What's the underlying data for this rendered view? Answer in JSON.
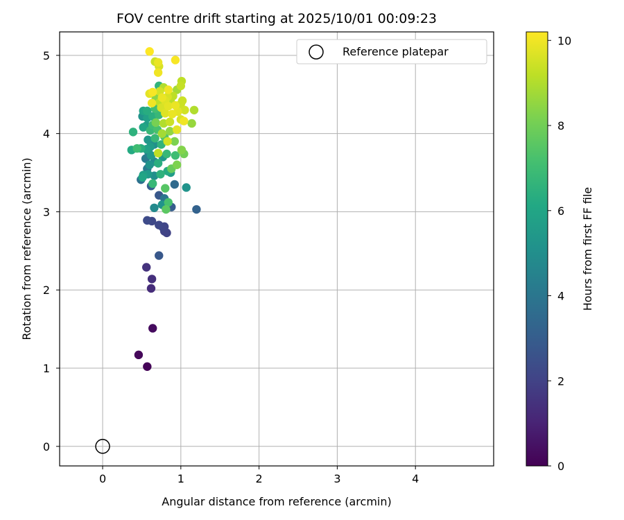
{
  "chart_data": {
    "type": "scatter",
    "title": "FOV centre drift starting at 2025/10/01 00:09:23",
    "xlabel": "Angular distance from reference (arcmin)",
    "ylabel": "Rotation from reference (arcmin)",
    "xlim": [
      -0.55,
      5.0
    ],
    "ylim": [
      -0.25,
      5.3
    ],
    "xticks": [
      0,
      1,
      2,
      3,
      4
    ],
    "yticks": [
      0,
      1,
      2,
      3,
      4,
      5
    ],
    "xtick_labels": [
      "0",
      "1",
      "2",
      "3",
      "4"
    ],
    "ytick_labels": [
      "0",
      "1",
      "2",
      "3",
      "4",
      "5"
    ],
    "grid": true,
    "legend": {
      "placement": "top-right",
      "label": "Reference platepar"
    },
    "reference_point": {
      "x": 0,
      "y": 0
    },
    "colorbar": {
      "label": "Hours from first FF file",
      "range": [
        0,
        10.2
      ],
      "ticks": [
        0,
        2,
        4,
        6,
        8,
        10
      ],
      "tick_labels": [
        "0",
        "2",
        "4",
        "6",
        "8",
        "10"
      ],
      "colormap": "viridis"
    },
    "points": [
      {
        "x": 0.57,
        "y": 1.02,
        "h": 0.1
      },
      {
        "x": 0.46,
        "y": 1.17,
        "h": 0.2
      },
      {
        "x": 0.64,
        "y": 1.51,
        "h": 0.3
      },
      {
        "x": 0.62,
        "y": 2.02,
        "h": 1.3
      },
      {
        "x": 0.63,
        "y": 2.14,
        "h": 1.4
      },
      {
        "x": 0.56,
        "y": 2.29,
        "h": 1.5
      },
      {
        "x": 0.72,
        "y": 2.44,
        "h": 2.8
      },
      {
        "x": 0.82,
        "y": 2.73,
        "h": 2.0
      },
      {
        "x": 0.79,
        "y": 2.75,
        "h": 2.0
      },
      {
        "x": 0.77,
        "y": 2.8,
        "h": 2.1
      },
      {
        "x": 0.72,
        "y": 2.83,
        "h": 2.2
      },
      {
        "x": 0.79,
        "y": 2.81,
        "h": 2.1
      },
      {
        "x": 0.63,
        "y": 2.88,
        "h": 2.2
      },
      {
        "x": 0.57,
        "y": 2.89,
        "h": 2.3
      },
      {
        "x": 1.2,
        "y": 3.03,
        "h": 3.2
      },
      {
        "x": 0.88,
        "y": 3.06,
        "h": 3.0
      },
      {
        "x": 0.66,
        "y": 3.05,
        "h": 4.8
      },
      {
        "x": 0.76,
        "y": 3.09,
        "h": 5.2
      },
      {
        "x": 0.81,
        "y": 3.03,
        "h": 7.6
      },
      {
        "x": 0.84,
        "y": 3.12,
        "h": 7.2
      },
      {
        "x": 0.79,
        "y": 3.17,
        "h": 4.0
      },
      {
        "x": 0.72,
        "y": 3.21,
        "h": 2.8
      },
      {
        "x": 0.8,
        "y": 3.3,
        "h": 7.5
      },
      {
        "x": 0.92,
        "y": 3.35,
        "h": 3.5
      },
      {
        "x": 1.07,
        "y": 3.31,
        "h": 5.2
      },
      {
        "x": 0.62,
        "y": 3.33,
        "h": 3.1
      },
      {
        "x": 0.64,
        "y": 3.36,
        "h": 6.8
      },
      {
        "x": 0.49,
        "y": 3.41,
        "h": 3.8
      },
      {
        "x": 0.51,
        "y": 3.44,
        "h": 6.0
      },
      {
        "x": 0.52,
        "y": 3.47,
        "h": 5.7
      },
      {
        "x": 0.58,
        "y": 3.48,
        "h": 5.5
      },
      {
        "x": 0.66,
        "y": 3.46,
        "h": 5.0
      },
      {
        "x": 0.74,
        "y": 3.48,
        "h": 6.5
      },
      {
        "x": 0.83,
        "y": 3.52,
        "h": 6.2
      },
      {
        "x": 0.87,
        "y": 3.5,
        "h": 5.6
      },
      {
        "x": 0.88,
        "y": 3.55,
        "h": 7.8
      },
      {
        "x": 0.95,
        "y": 3.6,
        "h": 8.2
      },
      {
        "x": 0.57,
        "y": 3.55,
        "h": 4.2
      },
      {
        "x": 0.6,
        "y": 3.6,
        "h": 5.2
      },
      {
        "x": 0.71,
        "y": 3.62,
        "h": 6.4
      },
      {
        "x": 0.66,
        "y": 3.64,
        "h": 4.8
      },
      {
        "x": 0.55,
        "y": 3.68,
        "h": 4.2
      },
      {
        "x": 0.62,
        "y": 3.72,
        "h": 5.5
      },
      {
        "x": 0.77,
        "y": 3.7,
        "h": 5.4
      },
      {
        "x": 0.71,
        "y": 3.75,
        "h": 9.2
      },
      {
        "x": 0.82,
        "y": 3.74,
        "h": 6.8
      },
      {
        "x": 0.93,
        "y": 3.72,
        "h": 7.0
      },
      {
        "x": 1.04,
        "y": 3.74,
        "h": 8.0
      },
      {
        "x": 1.01,
        "y": 3.79,
        "h": 8.3
      },
      {
        "x": 0.59,
        "y": 3.75,
        "h": 4.5
      },
      {
        "x": 0.56,
        "y": 3.8,
        "h": 5.8
      },
      {
        "x": 0.37,
        "y": 3.79,
        "h": 6.2
      },
      {
        "x": 0.44,
        "y": 3.81,
        "h": 7.0
      },
      {
        "x": 0.49,
        "y": 3.81,
        "h": 6.4
      },
      {
        "x": 0.61,
        "y": 3.83,
        "h": 5.6
      },
      {
        "x": 0.66,
        "y": 3.86,
        "h": 5.0
      },
      {
        "x": 0.75,
        "y": 3.86,
        "h": 6.6
      },
      {
        "x": 0.83,
        "y": 3.9,
        "h": 9.5
      },
      {
        "x": 0.92,
        "y": 3.9,
        "h": 8.2
      },
      {
        "x": 0.58,
        "y": 3.92,
        "h": 5.4
      },
      {
        "x": 0.67,
        "y": 3.94,
        "h": 6.8
      },
      {
        "x": 0.79,
        "y": 3.96,
        "h": 7.4
      },
      {
        "x": 0.76,
        "y": 4.0,
        "h": 8.8
      },
      {
        "x": 0.86,
        "y": 4.03,
        "h": 8.5
      },
      {
        "x": 0.95,
        "y": 4.05,
        "h": 9.8
      },
      {
        "x": 0.39,
        "y": 4.02,
        "h": 6.5
      },
      {
        "x": 0.61,
        "y": 4.04,
        "h": 6.8
      },
      {
        "x": 0.7,
        "y": 4.05,
        "h": 7.2
      },
      {
        "x": 0.52,
        "y": 4.08,
        "h": 6.0
      },
      {
        "x": 0.56,
        "y": 4.1,
        "h": 5.6
      },
      {
        "x": 0.64,
        "y": 4.11,
        "h": 7.0
      },
      {
        "x": 0.68,
        "y": 4.14,
        "h": 8.1
      },
      {
        "x": 0.78,
        "y": 4.13,
        "h": 9.0
      },
      {
        "x": 0.86,
        "y": 4.15,
        "h": 9.4
      },
      {
        "x": 1.0,
        "y": 4.18,
        "h": 9.6
      },
      {
        "x": 1.04,
        "y": 4.16,
        "h": 10.0
      },
      {
        "x": 1.14,
        "y": 4.13,
        "h": 8.6
      },
      {
        "x": 0.51,
        "y": 4.22,
        "h": 5.2
      },
      {
        "x": 0.57,
        "y": 4.2,
        "h": 5.8
      },
      {
        "x": 0.64,
        "y": 4.22,
        "h": 6.4
      },
      {
        "x": 0.72,
        "y": 4.24,
        "h": 6.8
      },
      {
        "x": 0.8,
        "y": 4.26,
        "h": 9.7
      },
      {
        "x": 0.89,
        "y": 4.25,
        "h": 9.9
      },
      {
        "x": 0.96,
        "y": 4.28,
        "h": 9.8
      },
      {
        "x": 1.05,
        "y": 4.3,
        "h": 9.5
      },
      {
        "x": 1.17,
        "y": 4.3,
        "h": 9.0
      },
      {
        "x": 0.52,
        "y": 4.29,
        "h": 6.0
      },
      {
        "x": 0.57,
        "y": 4.29,
        "h": 6.3
      },
      {
        "x": 0.67,
        "y": 4.32,
        "h": 7.1
      },
      {
        "x": 0.75,
        "y": 4.33,
        "h": 9.6
      },
      {
        "x": 0.84,
        "y": 4.35,
        "h": 9.8
      },
      {
        "x": 0.93,
        "y": 4.36,
        "h": 9.9
      },
      {
        "x": 1.0,
        "y": 4.38,
        "h": 9.4
      },
      {
        "x": 0.63,
        "y": 4.39,
        "h": 10.0
      },
      {
        "x": 0.73,
        "y": 4.4,
        "h": 9.2
      },
      {
        "x": 0.8,
        "y": 4.42,
        "h": 9.7
      },
      {
        "x": 0.87,
        "y": 4.41,
        "h": 9.1
      },
      {
        "x": 1.02,
        "y": 4.42,
        "h": 9.4
      },
      {
        "x": 0.68,
        "y": 4.45,
        "h": 8.4
      },
      {
        "x": 0.76,
        "y": 4.46,
        "h": 9.9
      },
      {
        "x": 0.83,
        "y": 4.47,
        "h": 9.6
      },
      {
        "x": 0.9,
        "y": 4.48,
        "h": 9.2
      },
      {
        "x": 0.6,
        "y": 4.51,
        "h": 9.8
      },
      {
        "x": 0.64,
        "y": 4.53,
        "h": 10.1
      },
      {
        "x": 0.73,
        "y": 4.54,
        "h": 9.5
      },
      {
        "x": 0.84,
        "y": 4.56,
        "h": 10.0
      },
      {
        "x": 0.95,
        "y": 4.56,
        "h": 8.8
      },
      {
        "x": 1.0,
        "y": 4.61,
        "h": 9.3
      },
      {
        "x": 0.72,
        "y": 4.61,
        "h": 6.6
      },
      {
        "x": 0.78,
        "y": 4.59,
        "h": 9.0
      },
      {
        "x": 1.01,
        "y": 4.67,
        "h": 9.2
      },
      {
        "x": 0.71,
        "y": 4.78,
        "h": 10.0
      },
      {
        "x": 0.72,
        "y": 4.86,
        "h": 9.6
      },
      {
        "x": 0.67,
        "y": 4.92,
        "h": 9.4
      },
      {
        "x": 0.71,
        "y": 4.91,
        "h": 9.9
      },
      {
        "x": 0.93,
        "y": 4.94,
        "h": 10.1
      },
      {
        "x": 0.6,
        "y": 5.05,
        "h": 10.2
      }
    ]
  }
}
